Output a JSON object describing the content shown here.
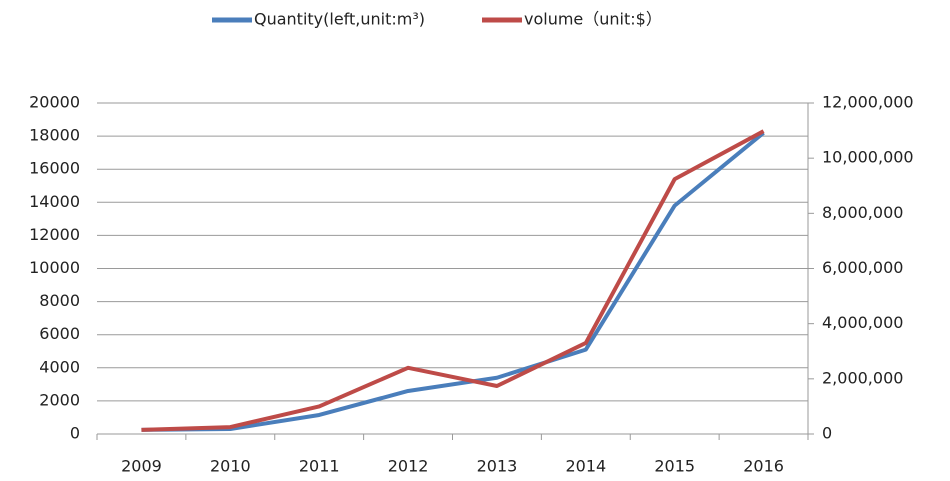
{
  "chart_data": {
    "type": "line",
    "categories": [
      "2009",
      "2010",
      "2011",
      "2012",
      "2013",
      "2014",
      "2015",
      "2016"
    ],
    "series": [
      {
        "name": "Quantity(left,unit:m³)",
        "color": "#4a7ebb",
        "values": [
          250,
          300,
          1150,
          2600,
          3400,
          5100,
          13800,
          18200
        ]
      },
      {
        "name": "volume（unit:$）",
        "color": "#be4b48",
        "axis": "y2",
        "values": [
          150000,
          250000,
          1000000,
          2400000,
          1740000,
          3300000,
          9240000,
          10980000
        ]
      }
    ],
    "ylim": [
      0,
      20000
    ],
    "yticks": [
      0,
      2000,
      4000,
      6000,
      8000,
      10000,
      12000,
      14000,
      16000,
      18000,
      20000
    ],
    "y2lim": [
      0,
      12000000
    ],
    "y2ticks": [
      {
        "value": 0,
        "label": "0"
      },
      {
        "value": 2000000,
        "label": "2,000,000"
      },
      {
        "value": 4000000,
        "label": "4,000,000"
      },
      {
        "value": 6000000,
        "label": "6,000,000"
      },
      {
        "value": 8000000,
        "label": "8,000,000"
      },
      {
        "value": 10000000,
        "label": "10,000,000"
      },
      {
        "value": 12000000,
        "label": "12,000,000"
      }
    ],
    "grid": true,
    "legend": "top"
  }
}
